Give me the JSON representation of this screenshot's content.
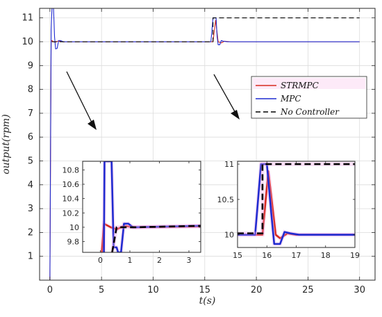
{
  "chart_data": [
    {
      "panel": "main",
      "type": "line",
      "xlabel": "t(s)",
      "ylabel": "output(rpm)",
      "xlim": [
        -1,
        31.5
      ],
      "ylim": [
        0,
        11.4
      ],
      "xticks": [
        0,
        5,
        10,
        15,
        20,
        25,
        30
      ],
      "yticks": [
        1,
        2,
        3,
        4,
        5,
        6,
        7,
        8,
        9,
        10,
        11
      ],
      "grid": true,
      "legend_position": "right",
      "series": [
        {
          "name": "STRMPC",
          "color": "#d62a1e",
          "style": "solid",
          "points": [
            [
              0,
              0
            ],
            [
              0.12,
              10
            ],
            [
              0.2,
              10.05
            ],
            [
              0.35,
              10.0
            ],
            [
              0.5,
              9.98
            ],
            [
              0.8,
              10.03
            ],
            [
              1.2,
              10.0
            ],
            [
              15.8,
              10.0
            ],
            [
              16.05,
              10.9
            ],
            [
              16.3,
              10.0
            ],
            [
              16.6,
              9.95
            ],
            [
              16.9,
              10.02
            ],
            [
              17.5,
              10.0
            ],
            [
              30,
              10.0
            ]
          ]
        },
        {
          "name": "MPC",
          "color": "#1f2bd0",
          "style": "solid",
          "points": [
            [
              0,
              0
            ],
            [
              0.12,
              10.5
            ],
            [
              0.2,
              11.4
            ],
            [
              0.35,
              11.4
            ],
            [
              0.45,
              10.2
            ],
            [
              0.55,
              9.7
            ],
            [
              0.7,
              9.72
            ],
            [
              0.85,
              10.05
            ],
            [
              1.0,
              10.05
            ],
            [
              1.3,
              10.0
            ],
            [
              15.6,
              10.0
            ],
            [
              15.8,
              11.0
            ],
            [
              16.1,
              11.0
            ],
            [
              16.2,
              10.2
            ],
            [
              16.3,
              9.87
            ],
            [
              16.45,
              9.87
            ],
            [
              16.6,
              10.05
            ],
            [
              16.8,
              10.02
            ],
            [
              17.2,
              10.0
            ],
            [
              30,
              10.0
            ]
          ]
        },
        {
          "name": "No Controller",
          "color": "#000000",
          "style": "dashed",
          "points": [
            [
              0.2,
              10.0
            ],
            [
              15.8,
              10.0
            ],
            [
              15.8,
              11.0
            ],
            [
              30,
              11.0
            ]
          ]
        }
      ]
    },
    {
      "panel": "inset-left",
      "type": "line",
      "xlim": [
        -0.6,
        3.4
      ],
      "ylim": [
        9.65,
        10.92
      ],
      "xticks": [
        0,
        1,
        2,
        3
      ],
      "yticks": [
        9.8,
        10,
        10.2,
        10.4,
        10.6,
        10.8
      ],
      "ytick_labels": [
        "9.8",
        "10",
        "10.2",
        "10.4",
        "10.6",
        "10.8"
      ],
      "series": [
        {
          "name": "STRMPC",
          "color": "#d62a1e",
          "style": "solid",
          "points": [
            [
              0.05,
              9.65
            ],
            [
              0.12,
              10.05
            ],
            [
              0.35,
              10.0
            ],
            [
              0.55,
              9.97
            ],
            [
              0.8,
              10.02
            ],
            [
              1.2,
              10.0
            ],
            [
              3.4,
              10.01
            ]
          ]
        },
        {
          "name": "MPC",
          "color": "#1f2bd0",
          "style": "solid",
          "points": [
            [
              0.12,
              9.65
            ],
            [
              0.14,
              10.92
            ],
            [
              0.38,
              10.92
            ],
            [
              0.45,
              9.72
            ],
            [
              0.55,
              9.72
            ],
            [
              0.6,
              9.65
            ],
            [
              0.7,
              9.65
            ],
            [
              0.8,
              10.05
            ],
            [
              0.95,
              10.05
            ],
            [
              1.1,
              10.0
            ],
            [
              3.4,
              10.02
            ]
          ]
        },
        {
          "name": "No Controller",
          "color": "#000000",
          "style": "dashed",
          "points": [
            [
              0.4,
              9.65
            ],
            [
              0.55,
              10.0
            ],
            [
              1.2,
              10.0
            ],
            [
              3.4,
              10.02
            ]
          ]
        }
      ]
    },
    {
      "panel": "inset-right",
      "type": "line",
      "xlim": [
        15,
        19
      ],
      "ylim": [
        9.82,
        11.04
      ],
      "xticks": [
        15,
        16,
        17,
        18,
        19
      ],
      "yticks": [
        10,
        10.5,
        11
      ],
      "ytick_labels": [
        "10",
        "10.5",
        "11"
      ],
      "series": [
        {
          "name": "STRMPC",
          "color": "#d62a1e",
          "style": "solid",
          "points": [
            [
              15,
              10.0
            ],
            [
              15.85,
              10.0
            ],
            [
              16.05,
              10.9
            ],
            [
              16.3,
              10.0
            ],
            [
              16.45,
              9.95
            ],
            [
              16.7,
              10.02
            ],
            [
              17.0,
              10.0
            ],
            [
              19,
              10.0
            ]
          ]
        },
        {
          "name": "MPC",
          "color": "#1f2bd0",
          "style": "solid",
          "points": [
            [
              15,
              10.0
            ],
            [
              15.6,
              10.0
            ],
            [
              15.8,
              11.0
            ],
            [
              16.0,
              11.0
            ],
            [
              16.15,
              10.3
            ],
            [
              16.25,
              9.87
            ],
            [
              16.45,
              9.87
            ],
            [
              16.6,
              10.04
            ],
            [
              16.8,
              10.02
            ],
            [
              17.1,
              10.0
            ],
            [
              19,
              10.0
            ]
          ]
        },
        {
          "name": "No Controller",
          "color": "#000000",
          "style": "dashed",
          "points": [
            [
              15,
              10.02
            ],
            [
              15.85,
              10.02
            ],
            [
              15.85,
              11.0
            ],
            [
              19,
              11.0
            ]
          ]
        }
      ]
    }
  ]
}
